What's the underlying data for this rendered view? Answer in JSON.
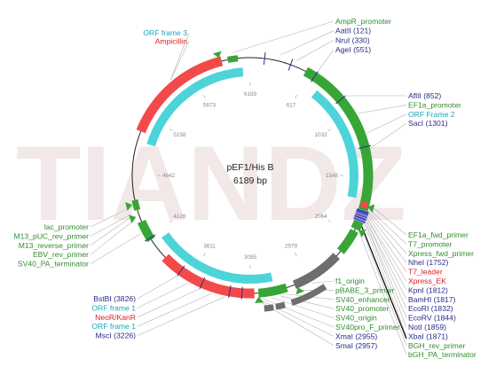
{
  "plasmid": {
    "name": "pEF1/His B",
    "size": "6189 bp"
  },
  "watermark": "TIANDZ",
  "colors": {
    "green": "#37a637",
    "red": "#f24a4a",
    "cyan": "#4dd4d8",
    "gray": "#6e6e6e",
    "label_green": "#2f8f2f",
    "label_red": "#e02020",
    "label_cyan": "#1aa6c0",
    "label_navy": "#2a2a8c"
  },
  "position_ticks": [
    "6189",
    "617",
    "1032",
    "1548",
    "2064",
    "2579",
    "3095",
    "3611",
    "4126",
    "4642",
    "5158",
    "5673"
  ],
  "labels": {
    "top_right": [
      {
        "text": "AmpR_promoter",
        "color": "green"
      },
      {
        "text": "AatII (121)",
        "color": "navy"
      },
      {
        "text": "NruI (330)",
        "color": "navy"
      },
      {
        "text": "AgeI (551)",
        "color": "navy"
      }
    ],
    "top_left": [
      {
        "text": "ORF frame 3",
        "color": "cyan"
      },
      {
        "text": "Ampicillin",
        "color": "red"
      }
    ],
    "right_mid": [
      {
        "text": "AflII (852)",
        "color": "navy"
      },
      {
        "text": "EF1a_promoter",
        "color": "green"
      },
      {
        "text": "ORF Frame 2",
        "color": "cyan"
      },
      {
        "text": "SacI (1301)",
        "color": "navy"
      }
    ],
    "right_bottom": [
      {
        "text": "EF1a_fwd_primer",
        "color": "green"
      },
      {
        "text": "T7_promoter",
        "color": "green"
      },
      {
        "text": "Xpress_fwd_primer",
        "color": "green"
      },
      {
        "text": "NheI (1752)",
        "color": "navy"
      },
      {
        "text": "T7_leader",
        "color": "red"
      },
      {
        "text": "Xpress_EK",
        "color": "red"
      },
      {
        "text": "KpnI (1812)",
        "color": "navy"
      },
      {
        "text": "BamHI (1817)",
        "color": "navy"
      },
      {
        "text": "EcoRI (1832)",
        "color": "navy"
      },
      {
        "text": "EcoRV (1844)",
        "color": "navy"
      },
      {
        "text": "NotI (1859)",
        "color": "navy"
      },
      {
        "text": "XbaI (1871)",
        "color": "navy"
      },
      {
        "text": "BGH_rev_primer",
        "color": "green"
      },
      {
        "text": "bGH_PA_terminator",
        "color": "green"
      }
    ],
    "left_mid": [
      {
        "text": "lac_promoter",
        "color": "green"
      },
      {
        "text": "M13_pUC_rev_primer",
        "color": "green"
      },
      {
        "text": "M13_reverse_primer",
        "color": "green"
      },
      {
        "text": "EBV_rev_primer",
        "color": "green"
      },
      {
        "text": "SV40_PA_terminator",
        "color": "green"
      }
    ],
    "bottom_left": [
      {
        "text": "BstBI (3826)",
        "color": "navy"
      },
      {
        "text": "ORF frame 1",
        "color": "cyan"
      },
      {
        "text": "NeoR/KanR",
        "color": "red"
      },
      {
        "text": "ORF frame 1",
        "color": "cyan"
      },
      {
        "text": "MscI (3226)",
        "color": "navy"
      }
    ],
    "bottom_mid": [
      {
        "text": "f1_origin",
        "color": "green"
      },
      {
        "text": "pBABE_3_primer",
        "color": "green"
      },
      {
        "text": "SV40_enhancer",
        "color": "green"
      },
      {
        "text": "SV40_promoter",
        "color": "green"
      },
      {
        "text": "SV40_origin",
        "color": "green"
      },
      {
        "text": "SV40pro_F_primer",
        "color": "green"
      },
      {
        "text": "XmaI (2955)",
        "color": "navy"
      },
      {
        "text": "SmaI (2957)",
        "color": "navy"
      }
    ]
  }
}
